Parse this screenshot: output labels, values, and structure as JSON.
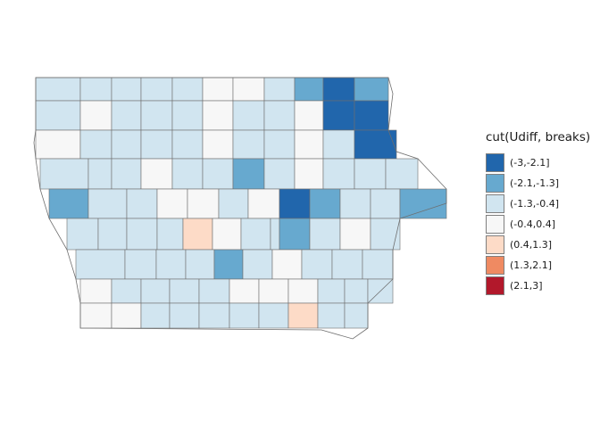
{
  "legend": {
    "title": "cut(Udiff, breaks)",
    "items": [
      {
        "label": "(-3,-2.1]",
        "color": "#2166ac"
      },
      {
        "label": "(-2.1,-1.3]",
        "color": "#67a9cf"
      },
      {
        "label": "(-1.3,-0.4]",
        "color": "#d1e5f0"
      },
      {
        "label": "(-0.4,0.4]",
        "color": "#f7f7f7"
      },
      {
        "label": "(0.4,1.3]",
        "color": "#fddbc7"
      },
      {
        "label": "(1.3,2.1]",
        "color": "#ef8a62"
      },
      {
        "label": "(2.1,3]",
        "color": "#b2182b"
      }
    ]
  },
  "map": {
    "county_classes": [
      [
        "(-1.3,-0.4]",
        "(-1.3,-0.4]",
        "(-1.3,-0.4]",
        "(-1.3,-0.4]",
        "(-1.3,-0.4]",
        "(-0.4,0.4]",
        "(-0.4,0.4]",
        "(-1.3,-0.4]",
        "(-2.1,-1.3]",
        "(-3,-2.1]",
        "(-2.1,-1.3]"
      ],
      [
        "(-1.3,-0.4]",
        "(-0.4,0.4]",
        "(-1.3,-0.4]",
        "(-1.3,-0.4]",
        "(-1.3,-0.4]",
        "(-0.4,0.4]",
        "(-1.3,-0.4]",
        "(-1.3,-0.4]",
        "(-0.4,0.4]",
        "(-3,-2.1]",
        "(-3,-2.1]"
      ],
      [
        "(-0.4,0.4]",
        "(-1.3,-0.4]",
        "(-1.3,-0.4]",
        "(-1.3,-0.4]",
        "(-1.3,-0.4]",
        "(-0.4,0.4]",
        "(-1.3,-0.4]",
        "(-1.3,-0.4]",
        "(-0.4,0.4]",
        "(-1.3,-0.4]",
        "(-3,-2.1]"
      ],
      [
        "(-1.3,-0.4]",
        "(-1.3,-0.4]",
        "(-1.3,-0.4]",
        "(-0.4,0.4]",
        "(-1.3,-0.4]",
        "(-1.3,-0.4]",
        "(-2.1,-1.3]",
        "(-1.3,-0.4]",
        "(-0.4,0.4]",
        "(-1.3,-0.4]",
        "(-1.3,-0.4]",
        "(-1.3,-0.4]"
      ],
      [
        "(-2.1,-1.3]",
        "(-1.3,-0.4]",
        "(-1.3,-0.4]",
        "(-0.4,0.4]",
        "(-0.4,0.4]",
        "(-1.3,-0.4]",
        "(-0.4,0.4]",
        "(-3,-2.1]",
        "(-2.1,-1.3]",
        "(-1.3,-0.4]",
        "(-1.3,-0.4]",
        "(-2.1,-1.3]",
        "(-1.3,-0.4]"
      ],
      [
        "(-1.3,-0.4]",
        "(-1.3,-0.4]",
        "(-1.3,-0.4]",
        "(-1.3,-0.4]",
        "(0.4,1.3]",
        "(-0.4,0.4]",
        "(-1.3,-0.4]",
        "(-1.3,-0.4]",
        "(-2.1,-1.3]",
        "(-1.3,-0.4]",
        "(-0.4,0.4]",
        "(-1.3,-0.4]",
        "(-0.4,0.4]"
      ],
      [
        "(-1.3,-0.4]",
        "(-1.3,-0.4]",
        "(-1.3,-0.4]",
        "(-1.3,-0.4]",
        "(-2.1,-1.3]",
        "(-1.3,-0.4]",
        "(-0.4,0.4]",
        "(-1.3,-0.4]",
        "(-1.3,-0.4]",
        "(-1.3,-0.4]",
        "(-1.3,-0.4]"
      ],
      [
        "(-0.4,0.4]",
        "(-1.3,-0.4]",
        "(-1.3,-0.4]",
        "(-1.3,-0.4]",
        "(-1.3,-0.4]",
        "(-0.4,0.4]",
        "(-0.4,0.4]",
        "(-0.4,0.4]",
        "(-1.3,-0.4]",
        "(-1.3,-0.4]",
        "(-1.3,-0.4]"
      ],
      [
        "(-0.4,0.4]",
        "(-0.4,0.4]",
        "(-1.3,-0.4]",
        "(-1.3,-0.4]",
        "(-1.3,-0.4]",
        "(-1.3,-0.4]",
        "(-1.3,-0.4]",
        "(0.4,1.3]",
        "(-1.3,-0.4]",
        "(-1.3,-0.4]"
      ]
    ]
  }
}
